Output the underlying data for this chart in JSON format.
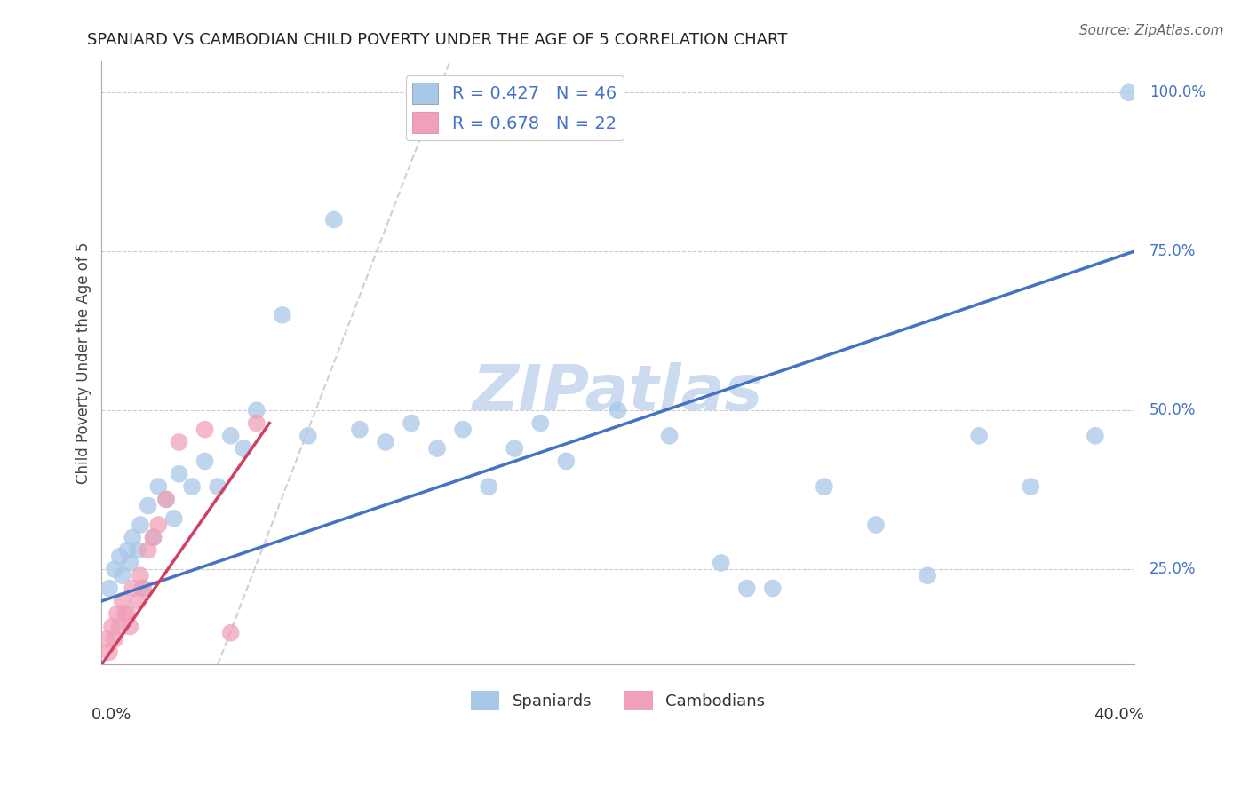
{
  "title": "SPANIARD VS CAMBODIAN CHILD POVERTY UNDER THE AGE OF 5 CORRELATION CHART",
  "source": "Source: ZipAtlas.com",
  "xlabel_bottom_left": "0.0%",
  "xlabel_bottom_right": "40.0%",
  "ylabel": "Child Poverty Under the Age of 5",
  "ytick_labels": [
    "25.0%",
    "50.0%",
    "75.0%",
    "100.0%"
  ],
  "ytick_values": [
    25.0,
    50.0,
    75.0,
    100.0
  ],
  "xlim": [
    0.0,
    40.0
  ],
  "ylim": [
    10.0,
    105.0
  ],
  "spaniard_color": "#a8c8e8",
  "cambodian_color": "#f0a0b8",
  "spaniard_line_color": "#4472c4",
  "cambodian_line_color": "#d04060",
  "ref_line_color": "#d0d0d0",
  "legend_blue_label": "R = 0.427   N = 46",
  "legend_pink_label": "R = 0.678   N = 22",
  "legend_blue_color": "#a8c8e8",
  "legend_pink_color": "#f0a0b8",
  "watermark": "ZIPatlas",
  "watermark_color": "#c8d8f0",
  "spaniard_x": [
    0.3,
    0.5,
    0.7,
    0.8,
    1.0,
    1.1,
    1.2,
    1.4,
    1.5,
    1.6,
    1.8,
    2.0,
    2.2,
    2.5,
    2.8,
    3.0,
    3.5,
    4.0,
    4.5,
    5.0,
    5.5,
    6.0,
    7.0,
    8.0,
    9.0,
    10.0,
    11.0,
    12.0,
    13.0,
    14.0,
    15.0,
    16.0,
    17.0,
    18.0,
    20.0,
    22.0,
    24.0,
    25.0,
    26.0,
    28.0,
    30.0,
    32.0,
    34.0,
    36.0,
    38.5,
    39.8
  ],
  "spaniard_y": [
    22.0,
    25.0,
    27.0,
    24.0,
    28.0,
    26.0,
    30.0,
    28.0,
    32.0,
    22.0,
    35.0,
    30.0,
    38.0,
    36.0,
    33.0,
    40.0,
    38.0,
    42.0,
    38.0,
    46.0,
    44.0,
    50.0,
    65.0,
    46.0,
    80.0,
    47.0,
    45.0,
    48.0,
    44.0,
    47.0,
    38.0,
    44.0,
    48.0,
    42.0,
    50.0,
    46.0,
    26.0,
    22.0,
    22.0,
    38.0,
    32.0,
    24.0,
    46.0,
    38.0,
    46.0,
    100.0
  ],
  "cambodian_x": [
    0.2,
    0.3,
    0.4,
    0.5,
    0.6,
    0.7,
    0.8,
    0.9,
    1.0,
    1.1,
    1.2,
    1.4,
    1.5,
    1.6,
    1.8,
    2.0,
    2.2,
    2.5,
    3.0,
    4.0,
    5.0,
    6.0
  ],
  "cambodian_y": [
    14.0,
    12.0,
    16.0,
    14.0,
    18.0,
    16.0,
    20.0,
    18.0,
    18.0,
    16.0,
    22.0,
    20.0,
    24.0,
    22.0,
    28.0,
    30.0,
    32.0,
    36.0,
    45.0,
    47.0,
    15.0,
    48.0
  ],
  "blue_line_x0": 0.0,
  "blue_line_y0": 20.0,
  "blue_line_x1": 40.0,
  "blue_line_y1": 75.0,
  "pink_line_x0": 0.0,
  "pink_line_y0": 10.0,
  "pink_line_x1": 6.5,
  "pink_line_y1": 48.0,
  "ref_line_x0": 4.5,
  "ref_line_y0": 10.0,
  "ref_line_x1": 13.5,
  "ref_line_y1": 105.0
}
